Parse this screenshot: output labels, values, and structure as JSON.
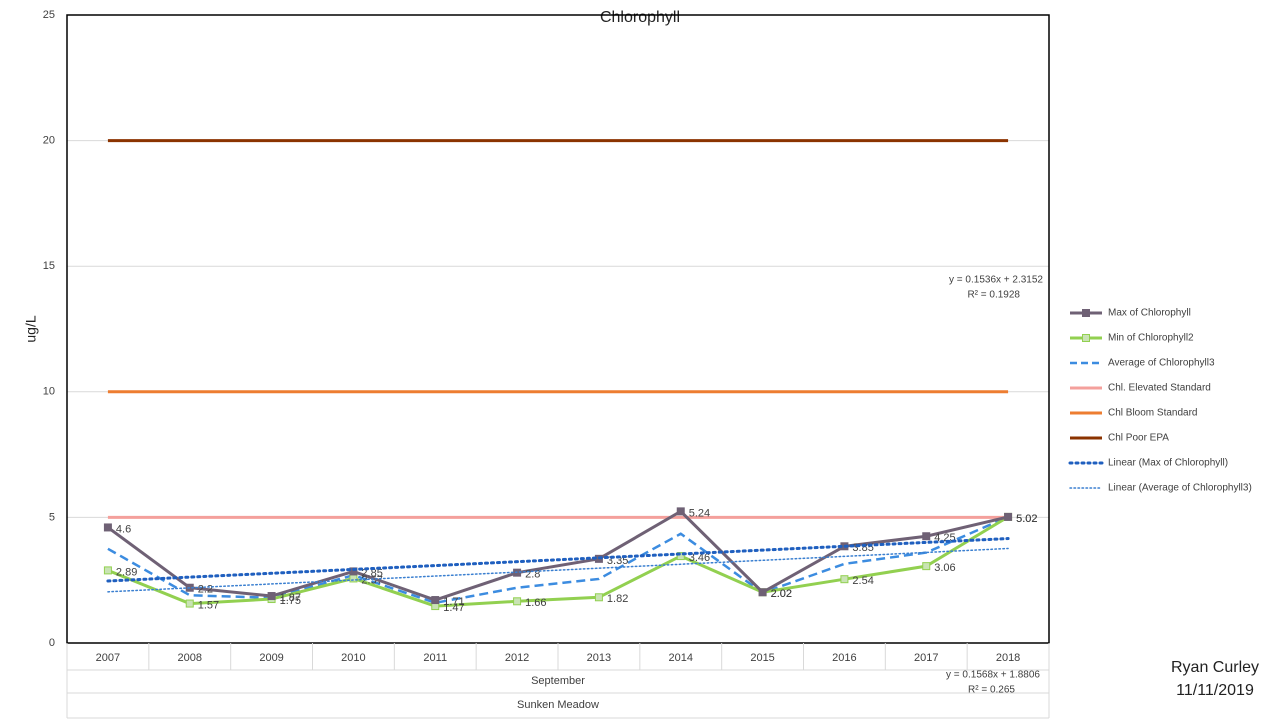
{
  "chart_data": {
    "type": "line",
    "title": "Chlorophyll",
    "y_label": "ug/L",
    "categories": [
      "2007",
      "2008",
      "2009",
      "2010",
      "2011",
      "2012",
      "2013",
      "2014",
      "2015",
      "2016",
      "2017",
      "2018"
    ],
    "category_group": "September",
    "category_group2": "Sunken Meadow",
    "ylim": [
      0,
      25
    ],
    "yticks": [
      0,
      5,
      10,
      15,
      20,
      25
    ],
    "grid": true,
    "legend": "right",
    "series": [
      {
        "name": "Max of Chlorophyll",
        "color": "#6f6175",
        "style": "solid",
        "marker": "square",
        "marker_fill": "#6f6175",
        "show_labels": true,
        "values": [
          4.6,
          2.2,
          1.87,
          2.85,
          1.71,
          2.8,
          3.35,
          5.24,
          2.02,
          3.85,
          4.25,
          5.02
        ]
      },
      {
        "name": "Min of Chlorophyll2",
        "color": "#92d050",
        "style": "solid",
        "marker": "square",
        "marker_fill": "#c9e3b4",
        "show_labels": true,
        "values": [
          2.89,
          1.57,
          1.75,
          2.57,
          1.47,
          1.66,
          1.82,
          3.46,
          2.02,
          2.54,
          3.06,
          5.02
        ]
      },
      {
        "name": "Average of Chlorophyll3",
        "color": "#3c8ce0",
        "style": "dashed",
        "values": [
          3.75,
          1.9,
          1.8,
          2.7,
          1.6,
          2.2,
          2.55,
          4.35,
          2.0,
          3.15,
          3.6,
          5.02
        ]
      },
      {
        "name": "Chl. Elevated Standard",
        "color": "#f4a09c",
        "style": "solid",
        "values": [
          5,
          5,
          5,
          5,
          5,
          5,
          5,
          5,
          5,
          5,
          5,
          5
        ]
      },
      {
        "name": "Chl Bloom Standard",
        "color": "#ed7d31",
        "style": "solid",
        "values": [
          10,
          10,
          10,
          10,
          10,
          10,
          10,
          10,
          10,
          10,
          10,
          10
        ]
      },
      {
        "name": "Chl Poor EPA",
        "color": "#8b3300",
        "style": "solid",
        "values": [
          20,
          20,
          20,
          20,
          20,
          20,
          20,
          20,
          20,
          20,
          20,
          20
        ]
      }
    ],
    "trendlines": [
      {
        "name": "Linear (Max of Chlorophyll)",
        "color": "#1f5fbf",
        "width": 3,
        "slope": 0.1536,
        "intercept": 2.3152,
        "equation": "y = 0.1536x + 2.3152",
        "r2": "R² = 0.1928"
      },
      {
        "name": "Linear (Average of Chlorophyll3)",
        "color": "#3a7fd0",
        "width": 1.5,
        "slope": 0.1568,
        "intercept": 1.8806,
        "equation": "y = 0.1568x + 1.8806",
        "r2": "R² = 0.265"
      }
    ],
    "author": "Ryan Curley",
    "date": "11/11/2019"
  }
}
